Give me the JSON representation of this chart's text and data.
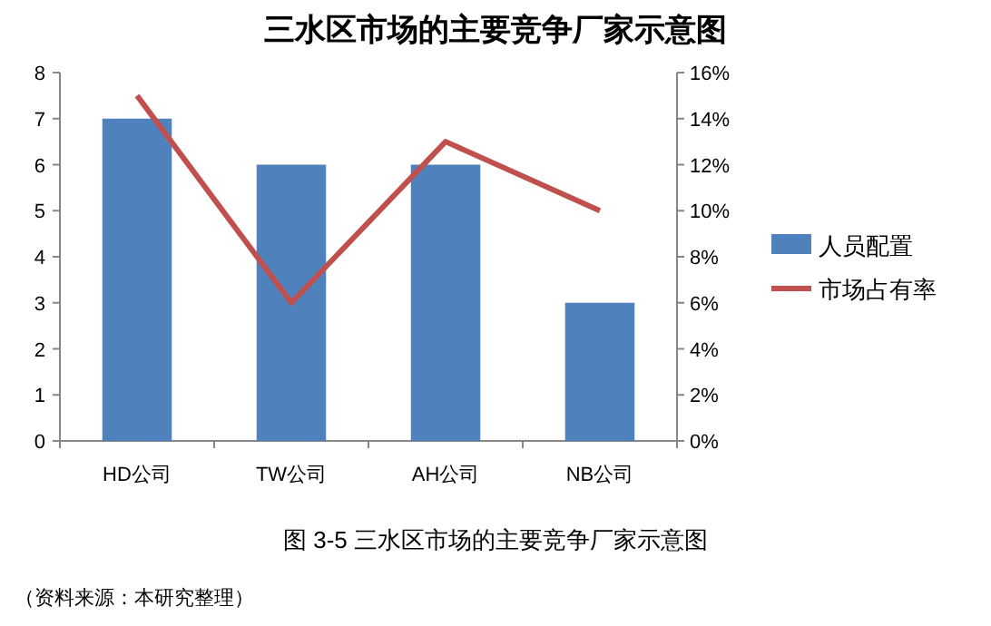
{
  "chart_data": {
    "type": "bar",
    "title": "三水区市场的主要竞争厂家示意图",
    "categories": [
      "HD公司",
      "TW公司",
      "AH公司",
      "NB公司"
    ],
    "series": [
      {
        "name": "人员配置",
        "color": "#4f81bd",
        "values": [
          7,
          6,
          6,
          3
        ]
      },
      {
        "name": "市场占有率",
        "type": "line",
        "axis": "y2",
        "color": "#c0504d",
        "values": [
          15,
          6,
          13,
          10
        ]
      }
    ],
    "ylim": [
      0,
      8
    ],
    "yticks": [
      0,
      1,
      2,
      3,
      4,
      5,
      6,
      7,
      8
    ],
    "y2lim": [
      0,
      16
    ],
    "y2ticks": [
      {
        "value": 0,
        "label": "0%"
      },
      {
        "value": 2,
        "label": "2%"
      },
      {
        "value": 4,
        "label": "4%"
      },
      {
        "value": 6,
        "label": "6%"
      },
      {
        "value": 8,
        "label": "8%"
      },
      {
        "value": 10,
        "label": "10%"
      },
      {
        "value": 12,
        "label": "12%"
      },
      {
        "value": 14,
        "label": "14%"
      },
      {
        "value": 16,
        "label": "16%"
      }
    ],
    "grid": false,
    "legend": "right",
    "marker": "none",
    "annotations": [
      "图 3-5 三水区市场的主要竞争厂家示意图",
      "（资料来源：本研究整理）"
    ]
  }
}
